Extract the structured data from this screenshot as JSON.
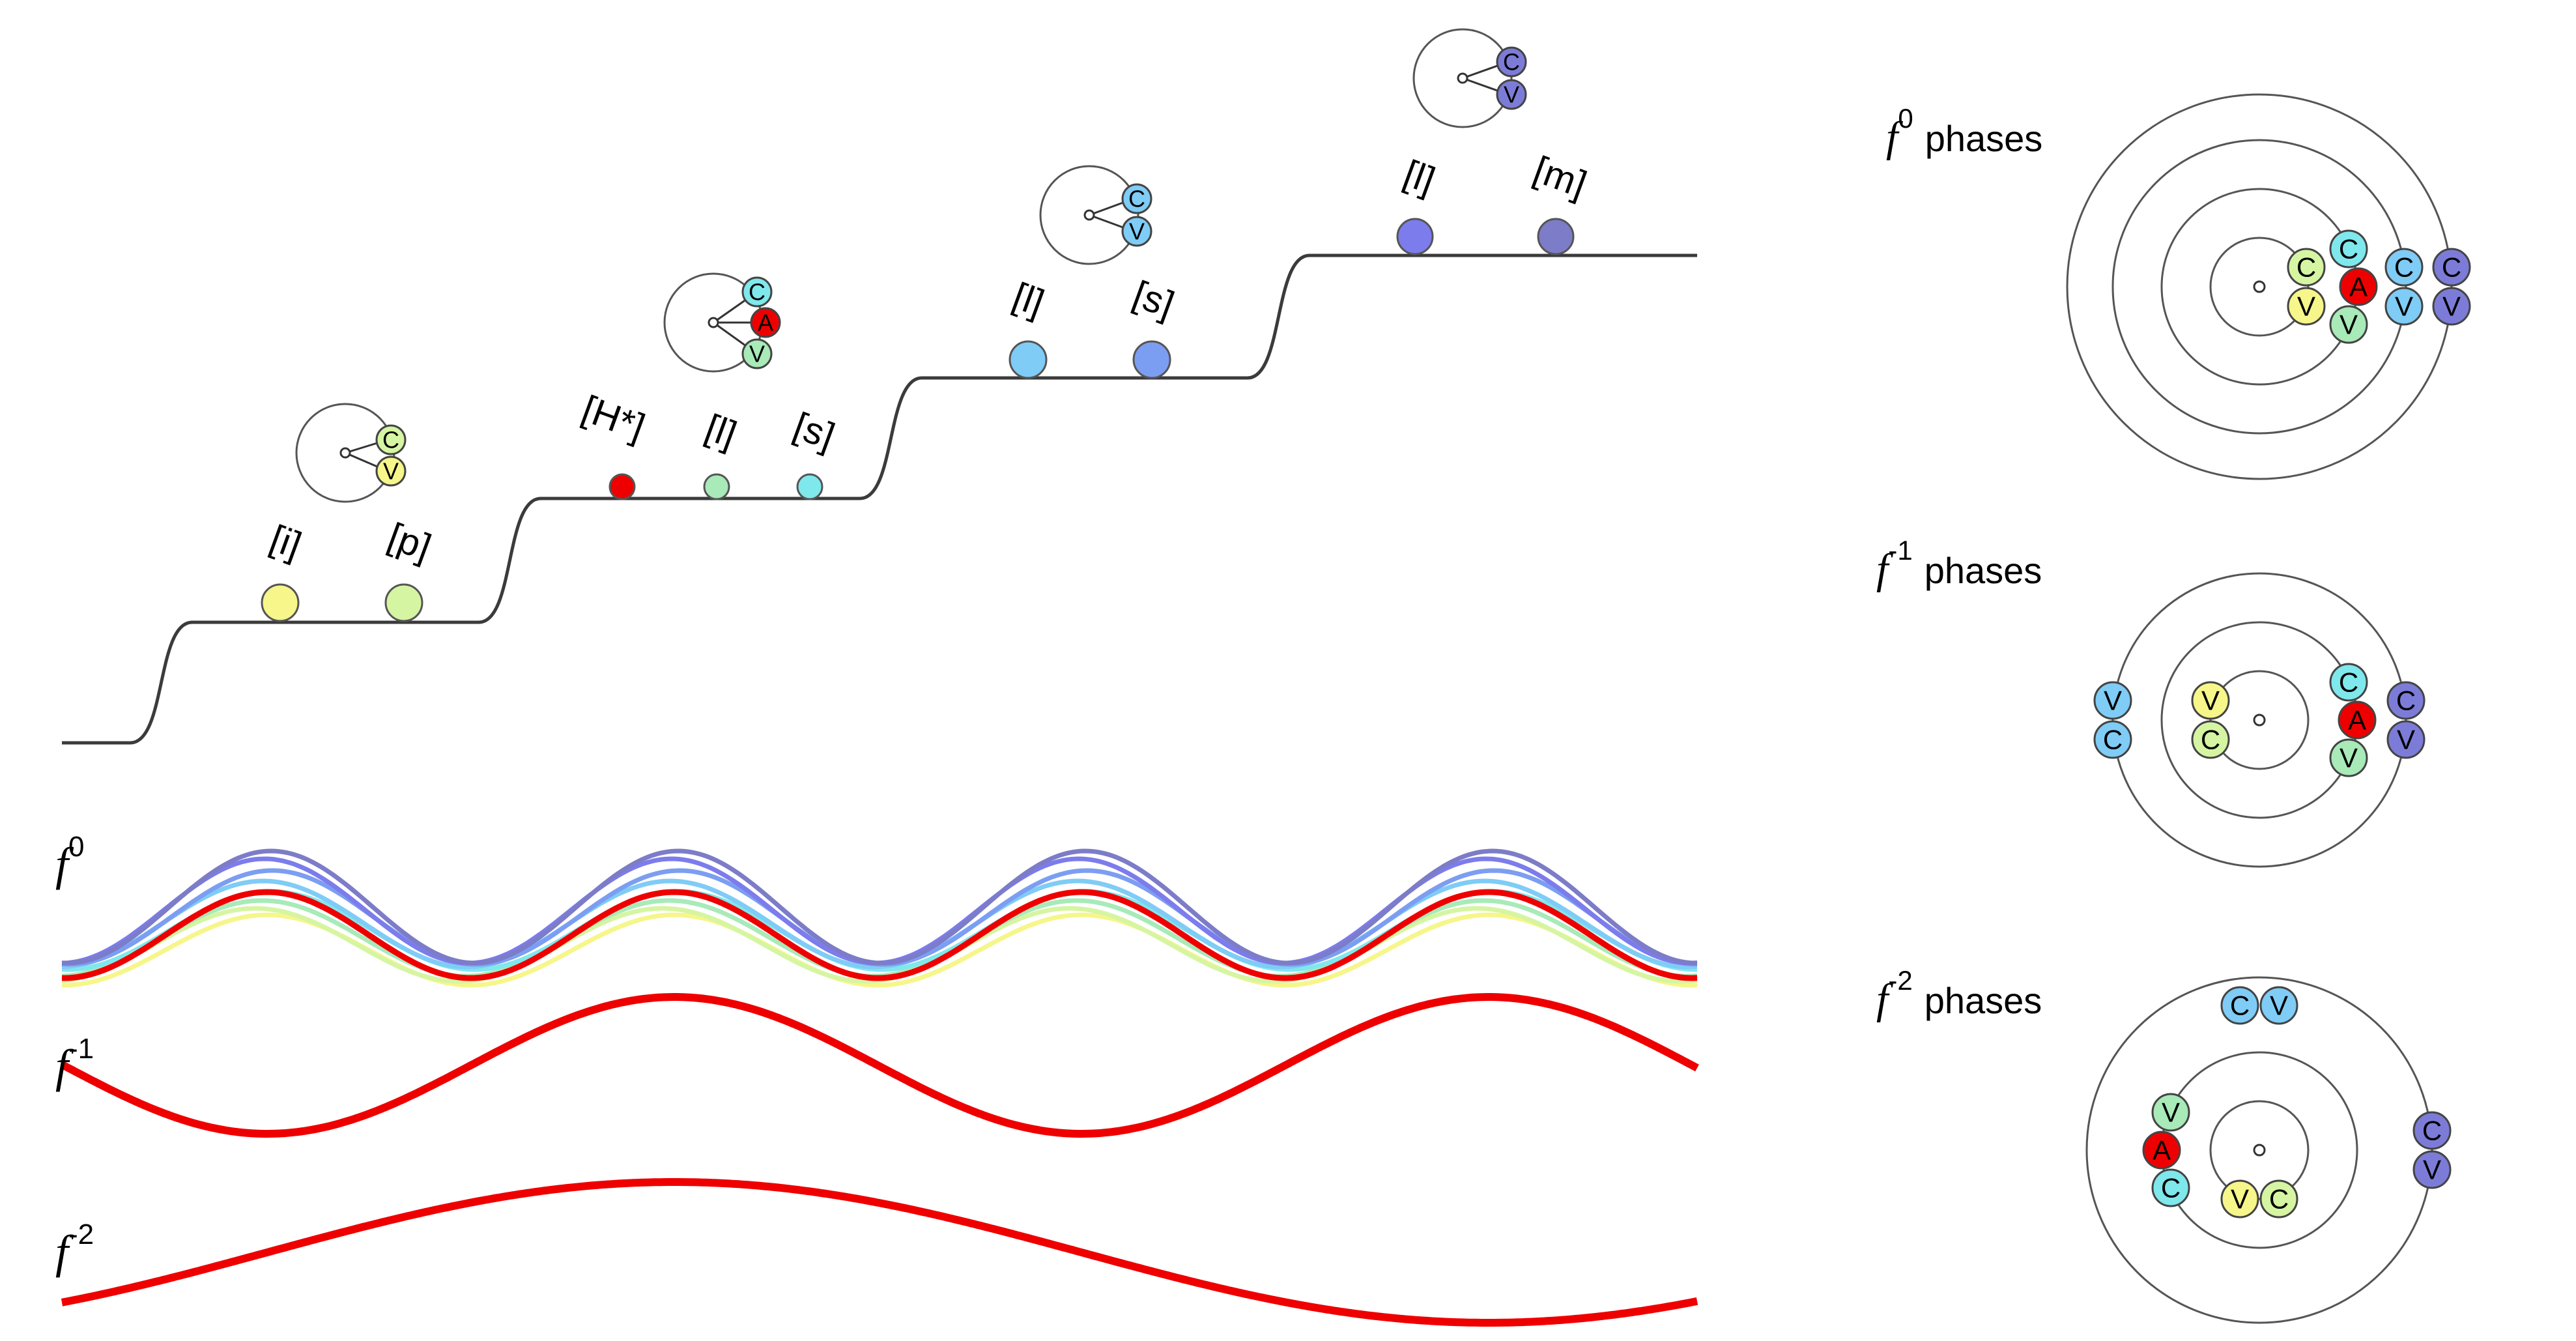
{
  "colors": {
    "staircase": "#3b3b3b",
    "ring": "#555555",
    "red_wave": "#ee0000",
    "seg": {
      "i": "#f6f68a",
      "p": "#d6f5a2",
      "Hstar": "#ee0000",
      "l1": "#a8eab8",
      "s1": "#7fe8ec",
      "l2": "#7fccf6",
      "s2": "#7c9ef2",
      "l3": "#7c7cec",
      "m": "#7c7cc8"
    },
    "gesture": {
      "C1": "#d6f5a2",
      "V1": "#f6f68a",
      "C2": "#7fe8ec",
      "A2": "#ee0000",
      "V2": "#a8eab8",
      "C3": "#7fccf6",
      "V3": "#7fccf6",
      "C4": "#7c7cd8",
      "V4": "#7c7cd8"
    }
  },
  "segments": [
    {
      "id": "i",
      "label": "[i]",
      "color_key": "i"
    },
    {
      "id": "p",
      "label": "[p]",
      "color_key": "p"
    },
    {
      "id": "Hstar",
      "label": "[H*]",
      "color_key": "Hstar"
    },
    {
      "id": "l1",
      "label": "[l]",
      "color_key": "l1"
    },
    {
      "id": "s1",
      "label": "[s]",
      "color_key": "s1"
    },
    {
      "id": "l2",
      "label": "[l]",
      "color_key": "l2"
    },
    {
      "id": "s2",
      "label": "[s]",
      "color_key": "s2"
    },
    {
      "id": "l3",
      "label": "[l]",
      "color_key": "l3"
    },
    {
      "id": "m",
      "label": "[m]",
      "color_key": "m"
    }
  ],
  "gesture_letters": {
    "C": "C",
    "V": "V",
    "A": "A"
  },
  "waves": {
    "f0": {
      "base": "f",
      "exp": "0"
    },
    "fm1": {
      "base": "f",
      "exp": "-1"
    },
    "fm2": {
      "base": "f",
      "exp": "-2"
    }
  },
  "phase_panels": {
    "p0": {
      "base": "f",
      "exp": "0",
      "word": "phases"
    },
    "p1": {
      "base": "f",
      "exp": "-1",
      "word": "phases"
    },
    "p2": {
      "base": "f",
      "exp": "-2",
      "word": "phases"
    }
  }
}
